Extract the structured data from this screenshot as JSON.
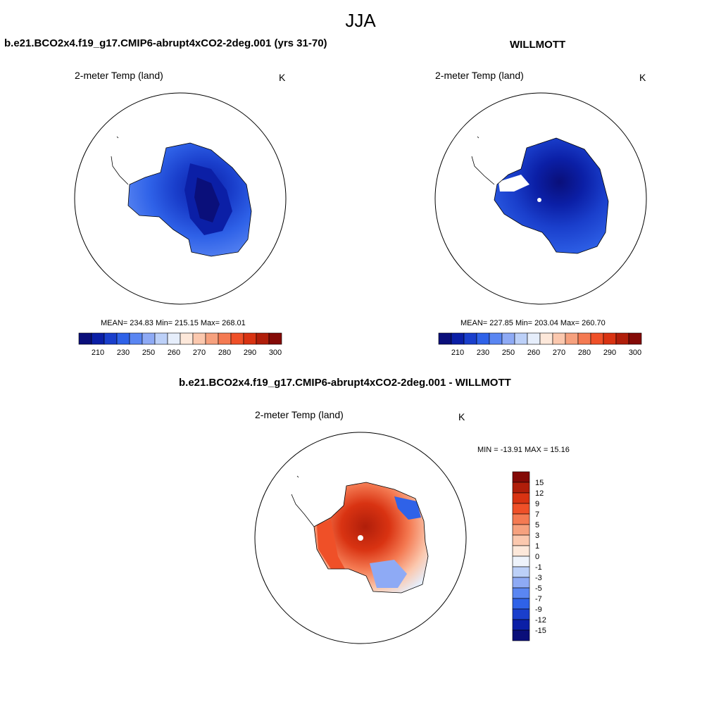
{
  "page": {
    "title": "JJA",
    "panel_left_title": "b.e21.BCO2x4.f19_g17.CMIP6-abrupt4xCO2-2deg.001 (yrs 31-70)",
    "panel_right_title": "WILLMOTT",
    "panel_diff_title": "b.e21.BCO2x4.f19_g17.CMIP6-abrupt4xCO2-2deg.001 - WILLMOTT"
  },
  "panels": {
    "left": {
      "variable": "2-meter Temp (land)",
      "units": "K",
      "stats": "MEAN= 234.83  Min= 215.15  Max= 268.01"
    },
    "right": {
      "variable": "2-meter Temp (land)",
      "units": "K",
      "stats": "MEAN= 227.85  Min= 203.04  Max= 260.70"
    },
    "diff": {
      "variable": "2-meter Temp (land)",
      "units": "K",
      "stats": "MIN = -13.91 MAX =  15.16"
    }
  },
  "colorbars": {
    "abs": {
      "colors": [
        "#0a0f7a",
        "#0b1fa6",
        "#1a3fcc",
        "#2f62e8",
        "#5a86f2",
        "#8eaaf5",
        "#bcd0f8",
        "#e6eefb",
        "#fde8da",
        "#fbc8ae",
        "#f6a17e",
        "#f47a52",
        "#ef5028",
        "#d93312",
        "#b01e0a",
        "#840a06"
      ],
      "ticks": [
        "210",
        "230",
        "250",
        "260",
        "270",
        "280",
        "290",
        "300"
      ]
    },
    "diff": {
      "colors": [
        "#840a06",
        "#b01e0a",
        "#d93312",
        "#ef5028",
        "#f47a52",
        "#f6a17e",
        "#fbc8ae",
        "#fde8da",
        "#eef3fb",
        "#bcd0f8",
        "#8eaaf5",
        "#5a86f2",
        "#2f62e8",
        "#1a3fcc",
        "#0b1fa6",
        "#0a0f7a"
      ],
      "ticks": [
        "15",
        "12",
        "9",
        "7",
        "5",
        "3",
        "1",
        "0",
        "-1",
        "-3",
        "-5",
        "-7",
        "-9",
        "-12",
        "-15"
      ]
    }
  }
}
